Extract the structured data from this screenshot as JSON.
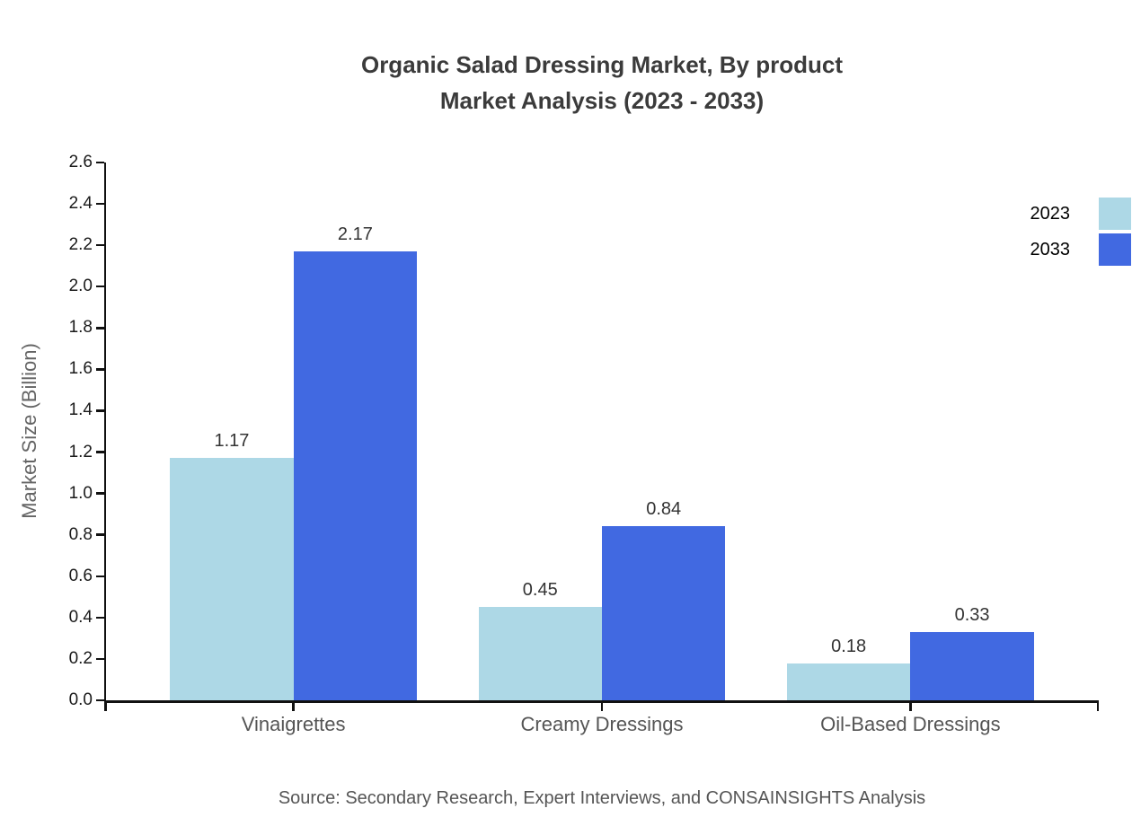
{
  "title": {
    "line1": "Organic Salad Dressing Market, By product",
    "line2": "Market Analysis (2023 - 2033)"
  },
  "source": "Source: Secondary Research, Expert Interviews, and CONSAINSIGHTS Analysis",
  "colors": {
    "series_2023": "#ADD8E6",
    "series_2033": "#4169E1",
    "axis": "#111111",
    "tick_label": "#1a1a1a",
    "category_label": "#555555",
    "value_label": "#333333",
    "title_text": "#3b3b3b",
    "muted_text": "#646464"
  },
  "chart_data": {
    "type": "bar",
    "title": "Organic Salad Dressing Market, By product Market Analysis (2023 - 2033)",
    "categories": [
      "Vinaigrettes",
      "Creamy Dressings",
      "Oil-Based Dressings"
    ],
    "series": [
      {
        "name": "2023",
        "color": "#ADD8E6",
        "values": [
          1.17,
          0.45,
          0.18
        ]
      },
      {
        "name": "2033",
        "color": "#4169E1",
        "values": [
          2.17,
          0.84,
          0.33
        ]
      }
    ],
    "xlabel": "",
    "ylabel": "Market Size (Billion)",
    "ylim": [
      0,
      2.6
    ],
    "ytick_step": 0.2,
    "ytick_decimals": 1,
    "value_label_decimals": 2,
    "grid": false,
    "legend_position": "right-top",
    "value_labels": true
  }
}
